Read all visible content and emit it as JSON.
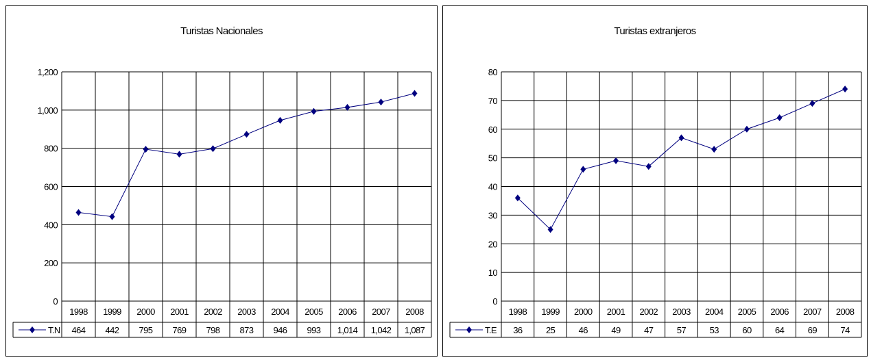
{
  "chart_data": [
    {
      "type": "line",
      "title": "Turistas Nacionales",
      "categories": [
        "1998",
        "1999",
        "2000",
        "2001",
        "2002",
        "2003",
        "2004",
        "2005",
        "2006",
        "2007",
        "2008"
      ],
      "series": [
        {
          "name": "T.N",
          "values": [
            464,
            442,
            795,
            769,
            798,
            873,
            946,
            993,
            1014,
            1042,
            1087
          ]
        }
      ],
      "value_labels": [
        "464",
        "442",
        "795",
        "769",
        "798",
        "873",
        "946",
        "993",
        "1,014",
        "1,042",
        "1,087"
      ],
      "ylim": [
        0,
        1200
      ],
      "yticks": [
        "0",
        "200",
        "400",
        "600",
        "800",
        "1,000",
        "1,200"
      ],
      "grid": true,
      "legend": "data-table",
      "color": "#00007f"
    },
    {
      "type": "line",
      "title": "Turistas extranjeros",
      "categories": [
        "1998",
        "1999",
        "2000",
        "2001",
        "2002",
        "2003",
        "2004",
        "2005",
        "2006",
        "2007",
        "2008"
      ],
      "series": [
        {
          "name": "T.E",
          "values": [
            36,
            25,
            46,
            49,
            47,
            57,
            53,
            60,
            64,
            69,
            74
          ]
        }
      ],
      "value_labels": [
        "36",
        "25",
        "46",
        "49",
        "47",
        "57",
        "53",
        "60",
        "64",
        "69",
        "74"
      ],
      "ylim": [
        0,
        80
      ],
      "yticks": [
        "0",
        "10",
        "20",
        "30",
        "40",
        "50",
        "60",
        "70",
        "80"
      ],
      "grid": true,
      "legend": "data-table",
      "color": "#00007f"
    }
  ]
}
